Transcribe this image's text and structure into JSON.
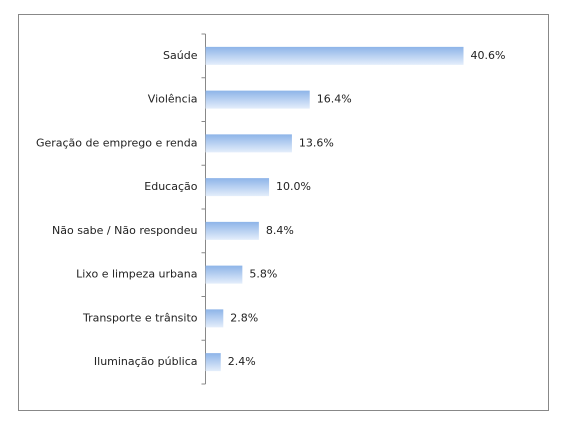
{
  "chart_data": {
    "type": "bar",
    "orientation": "horizontal",
    "categories": [
      "Saúde",
      "Violência",
      "Geração de emprego e renda",
      "Educação",
      "Não sabe / Não respondeu",
      "Lixo e limpeza urbana",
      "Transporte e trânsito",
      "Iluminação pública"
    ],
    "values": [
      40.6,
      16.4,
      13.6,
      10.0,
      8.4,
      5.8,
      2.8,
      2.4
    ],
    "value_labels": [
      "40.6%",
      "16.4%",
      "13.6%",
      "10.0%",
      "8.4%",
      "5.8%",
      "2.8%",
      "2.4%"
    ],
    "color": "#8db4e8"
  }
}
